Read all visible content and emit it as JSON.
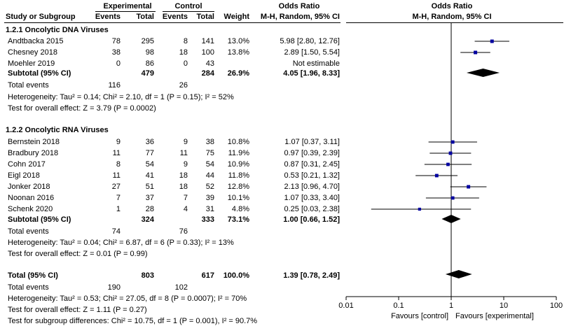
{
  "header": {
    "group_experimental": "Experimental",
    "group_control": "Control",
    "odds_ratio_table": "Odds Ratio",
    "odds_ratio_plot": "Odds Ratio",
    "col_study": "Study or Subgroup",
    "col_events_e": "Events",
    "col_total_e": "Total",
    "col_events_c": "Events",
    "col_total_c": "Total",
    "col_weight": "Weight",
    "col_method_table": "M-H, Random, 95% CI",
    "col_method_plot": "M-H, Random, 95% CI"
  },
  "chart_data": {
    "type": "forest",
    "x_scale": "log",
    "xlim": [
      0.01,
      100
    ],
    "x_ticks": [
      "0.01",
      "0.1",
      "1",
      "10",
      "100"
    ],
    "x_tick_values": [
      0.01,
      0.1,
      1,
      10,
      100
    ],
    "favours_left": "Favours [control]",
    "favours_right": "Favours [experimental]",
    "marker_color": "#0000a0",
    "subgroups": [
      {
        "title": "1.2.1 Oncolytic DNA Viruses",
        "studies": [
          {
            "name": "Andtbacka 2015",
            "e_events": "78",
            "e_total": "295",
            "c_events": "8",
            "c_total": "141",
            "weight": "13.0%",
            "ci_text": "5.98 [2.80, 12.76]",
            "or": 5.98,
            "lo": 2.8,
            "hi": 12.76
          },
          {
            "name": "Chesney 2018",
            "e_events": "38",
            "e_total": "98",
            "c_events": "18",
            "c_total": "100",
            "weight": "13.8%",
            "ci_text": "2.89 [1.50, 5.54]",
            "or": 2.89,
            "lo": 1.5,
            "hi": 5.54
          },
          {
            "name": "Moehler 2019",
            "e_events": "0",
            "e_total": "86",
            "c_events": "0",
            "c_total": "43",
            "weight": "",
            "ci_text": "Not estimable",
            "or": null,
            "lo": null,
            "hi": null
          }
        ],
        "subtotal": {
          "label": "Subtotal (95% CI)",
          "e_total": "479",
          "c_total": "284",
          "weight": "26.9%",
          "ci_text": "4.05 [1.96, 8.33]",
          "or": 4.05,
          "lo": 1.96,
          "hi": 8.33
        },
        "total_events_label": "Total events",
        "e_events_total": "116",
        "c_events_total": "26",
        "heterogeneity": "Heterogeneity: Tau² = 0.14; Chi² = 2.10, df = 1 (P = 0.15); I² = 52%",
        "overall_effect": "Test for overall effect: Z = 3.79 (P = 0.0002)"
      },
      {
        "title": "1.2.2 Oncolytic RNA Viruses",
        "studies": [
          {
            "name": "Bernstein 2018",
            "e_events": "9",
            "e_total": "36",
            "c_events": "9",
            "c_total": "38",
            "weight": "10.8%",
            "ci_text": "1.07 [0.37, 3.11]",
            "or": 1.07,
            "lo": 0.37,
            "hi": 3.11
          },
          {
            "name": "Bradbury 2018",
            "e_events": "11",
            "e_total": "77",
            "c_events": "11",
            "c_total": "75",
            "weight": "11.9%",
            "ci_text": "0.97 [0.39, 2.39]",
            "or": 0.97,
            "lo": 0.39,
            "hi": 2.39
          },
          {
            "name": "Cohn 2017",
            "e_events": "8",
            "e_total": "54",
            "c_events": "9",
            "c_total": "54",
            "weight": "10.9%",
            "ci_text": "0.87 [0.31, 2.45]",
            "or": 0.87,
            "lo": 0.31,
            "hi": 2.45
          },
          {
            "name": "Eigl 2018",
            "e_events": "11",
            "e_total": "41",
            "c_events": "18",
            "c_total": "44",
            "weight": "11.8%",
            "ci_text": "0.53 [0.21, 1.32]",
            "or": 0.53,
            "lo": 0.21,
            "hi": 1.32
          },
          {
            "name": "Jonker 2018",
            "e_events": "27",
            "e_total": "51",
            "c_events": "18",
            "c_total": "52",
            "weight": "12.8%",
            "ci_text": "2.13 [0.96, 4.70]",
            "or": 2.13,
            "lo": 0.96,
            "hi": 4.7
          },
          {
            "name": "Noonan 2016",
            "e_events": "7",
            "e_total": "37",
            "c_events": "7",
            "c_total": "39",
            "weight": "10.1%",
            "ci_text": "1.07 [0.33, 3.40]",
            "or": 1.07,
            "lo": 0.33,
            "hi": 3.4
          },
          {
            "name": "Schenk 2020",
            "e_events": "1",
            "e_total": "28",
            "c_events": "4",
            "c_total": "31",
            "weight": "4.8%",
            "ci_text": "0.25 [0.03, 2.38]",
            "or": 0.25,
            "lo": 0.03,
            "hi": 2.38
          }
        ],
        "subtotal": {
          "label": "Subtotal (95% CI)",
          "e_total": "324",
          "c_total": "333",
          "weight": "73.1%",
          "ci_text": "1.00 [0.66, 1.52]",
          "or": 1.0,
          "lo": 0.66,
          "hi": 1.52
        },
        "total_events_label": "Total events",
        "e_events_total": "74",
        "c_events_total": "76",
        "heterogeneity": "Heterogeneity: Tau² = 0.04; Chi² = 6.87, df = 6 (P = 0.33); I² = 13%",
        "overall_effect": "Test for overall effect: Z = 0.01 (P = 0.99)"
      }
    ],
    "total": {
      "label": "Total (95% CI)",
      "e_total": "803",
      "c_total": "617",
      "weight": "100.0%",
      "ci_text": "1.39 [0.78, 2.49]",
      "or": 1.39,
      "lo": 0.78,
      "hi": 2.49
    },
    "total_events_label": "Total events",
    "total_e_events": "190",
    "total_c_events": "102",
    "heterogeneity": "Heterogeneity: Tau² = 0.53; Chi² = 27.05, df = 8 (P = 0.0007); I² = 70%",
    "overall_effect": "Test for overall effect: Z = 1.11 (P = 0.27)",
    "subgroup_differences": "Test for subgroup differences: Chi² = 10.75, df = 1 (P = 0.001), I² = 90.7%"
  }
}
